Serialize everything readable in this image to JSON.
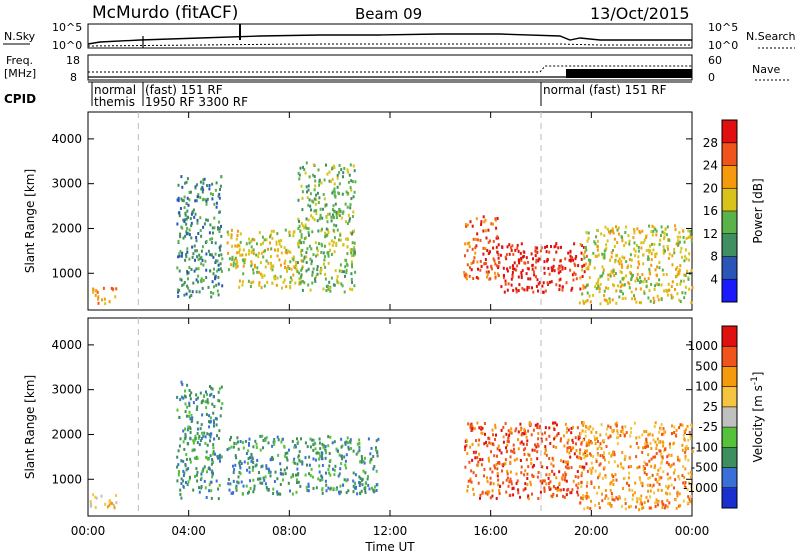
{
  "header": {
    "station": "McMurdo (fitACF)",
    "beam": "Beam 09",
    "date": "13/Oct/2015"
  },
  "top_panels": {
    "nsky": {
      "label": "N.Sky",
      "ticks_left": [
        "10^5",
        "10^0"
      ],
      "ticks_right": [
        "10^5",
        "10^0"
      ],
      "right_label": "N.Search"
    },
    "freq": {
      "label_line1": "Freq.",
      "label_line2": "[MHz]",
      "ticks_left": [
        "18",
        "8"
      ],
      "ticks_right": [
        "60",
        "0"
      ],
      "right_label": "Nave"
    },
    "cpid": {
      "label": "CPID",
      "text1": "normal",
      "text2": "themis",
      "text3": "(fast)  151  RF",
      "text4": "1950 RF 3300 RF",
      "text5": "normal (fast) 151 RF"
    }
  },
  "chart_data": [
    {
      "type": "heatmap",
      "title": "",
      "xlabel": "Time UT",
      "ylabel": "Slant Range [km]",
      "x_ticks": [
        "00:00",
        "04:00",
        "08:00",
        "12:00",
        "16:00",
        "20:00",
        "00:00"
      ],
      "xlim_hours": [
        0,
        24
      ],
      "y_ticks": [
        1000,
        2000,
        3000,
        4000
      ],
      "ylim": [
        180,
        4600
      ],
      "colorbar": {
        "label": "Power [dB]",
        "ticks": [
          4,
          8,
          12,
          16,
          20,
          24,
          28
        ],
        "colors": [
          "#1a1aff",
          "#2a56b8",
          "#3f8f62",
          "#5ab24a",
          "#d9c21a",
          "#f59a0c",
          "#f0541a",
          "#e01010"
        ]
      },
      "regions": [
        {
          "t": [
            0.0,
            1.1
          ],
          "r": [
            350,
            700
          ],
          "level": 5
        },
        {
          "t": [
            3.5,
            5.3
          ],
          "r": [
            500,
            3200
          ],
          "level": 2
        },
        {
          "t": [
            5.5,
            8.5
          ],
          "r": [
            700,
            2000
          ],
          "level": 4
        },
        {
          "t": [
            8.3,
            10.6
          ],
          "r": [
            600,
            3500
          ],
          "level": 3
        },
        {
          "t": [
            14.9,
            16.3
          ],
          "r": [
            900,
            2300
          ],
          "level": 6
        },
        {
          "t": [
            16.2,
            19.8
          ],
          "r": [
            600,
            1700
          ],
          "level": 7
        },
        {
          "t": [
            19.5,
            24.0
          ],
          "r": [
            350,
            2100
          ],
          "level": 4
        }
      ]
    },
    {
      "type": "heatmap",
      "title": "",
      "xlabel": "Time UT",
      "ylabel": "Slant Range [km]",
      "x_ticks": [
        "00:00",
        "04:00",
        "08:00",
        "12:00",
        "16:00",
        "20:00",
        "00:00"
      ],
      "xlim_hours": [
        0,
        24
      ],
      "y_ticks": [
        1000,
        2000,
        3000,
        4000
      ],
      "ylim": [
        180,
        4600
      ],
      "colorbar": {
        "label": "Velocity [m s^-1]",
        "ticks": [
          1000,
          500,
          100,
          25,
          -25,
          -100,
          -500,
          -1000
        ],
        "colors": [
          "#1a2fd0",
          "#3a6fd8",
          "#3e8f5e",
          "#56c23a",
          "#c0c0c0",
          "#f5c542",
          "#f59a0c",
          "#f0541a",
          "#e01010"
        ]
      },
      "regions": [
        {
          "t": [
            0.0,
            1.1
          ],
          "r": [
            350,
            700
          ],
          "level": 5
        },
        {
          "t": [
            3.5,
            5.3
          ],
          "r": [
            600,
            3200
          ],
          "level": 2
        },
        {
          "t": [
            5.5,
            11.5
          ],
          "r": [
            700,
            2000
          ],
          "level": 2
        },
        {
          "t": [
            14.9,
            19.8
          ],
          "r": [
            600,
            2300
          ],
          "level": 7
        },
        {
          "t": [
            19.5,
            24.0
          ],
          "r": [
            350,
            2300
          ],
          "level": 6
        }
      ]
    }
  ]
}
